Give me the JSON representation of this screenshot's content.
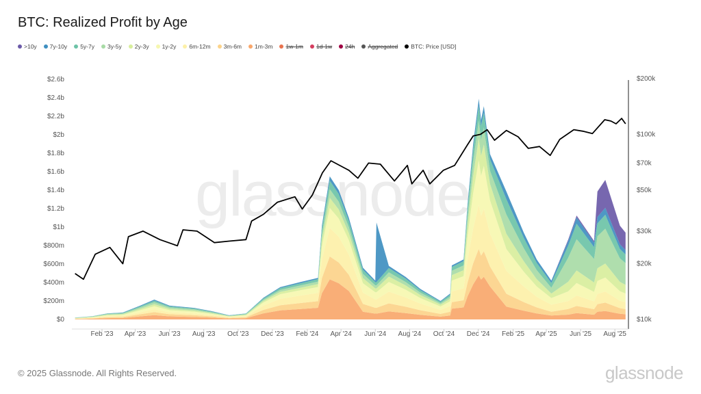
{
  "title": "BTC: Realized Profit by Age",
  "watermark": "glassnode",
  "footer": {
    "copyright": "© 2025 Glassnode. All Rights Reserved.",
    "logo": "glassnode"
  },
  "legend": [
    {
      "label": ">10y",
      "color": "#6b5aa8",
      "enabled": true
    },
    {
      "label": "7y-10y",
      "color": "#3f8fc0",
      "enabled": true
    },
    {
      "label": "5y-7y",
      "color": "#6cc3a7",
      "enabled": true
    },
    {
      "label": "3y-5y",
      "color": "#a8dba6",
      "enabled": true
    },
    {
      "label": "2y-3y",
      "color": "#d8ee9c",
      "enabled": true
    },
    {
      "label": "1y-2y",
      "color": "#f6f7b0",
      "enabled": true
    },
    {
      "label": "6m-12m",
      "color": "#fdf0a8",
      "enabled": true
    },
    {
      "label": "3m-6m",
      "color": "#fcd38a",
      "enabled": true
    },
    {
      "label": "1m-3m",
      "color": "#f9a76b",
      "enabled": true
    },
    {
      "label": "1w-1m",
      "color": "#e8734f",
      "enabled": false
    },
    {
      "label": "1d-1w",
      "color": "#d53e5f",
      "enabled": false
    },
    {
      "label": "24h",
      "color": "#9e0142",
      "enabled": false
    },
    {
      "label": "Aggregated",
      "color": "#555555",
      "enabled": false
    },
    {
      "label": "BTC: Price [USD]",
      "color": "#000000",
      "enabled": true
    }
  ],
  "chart_data": {
    "type": "area",
    "stacked": true,
    "title": "BTC: Realized Profit by Age",
    "y_left": {
      "unit": "USD millions",
      "range": [
        0,
        2600
      ],
      "ticks": [
        "$0",
        "$200m",
        "$400m",
        "$600m",
        "$800m",
        "$1b",
        "$1.2b",
        "$1.4b",
        "$1.6b",
        "$1.8b",
        "$2b",
        "$2.2b",
        "$2.4b",
        "$2.6b"
      ]
    },
    "y_right": {
      "scale": "log",
      "range": [
        10000,
        200000
      ],
      "ticks": [
        {
          "v": 10000,
          "label": "$10k"
        },
        {
          "v": 20000,
          "label": "$20k"
        },
        {
          "v": 30000,
          "label": "$30k"
        },
        {
          "v": 50000,
          "label": "$50k"
        },
        {
          "v": 70000,
          "label": "$70k"
        },
        {
          "v": 100000,
          "label": "$100k"
        },
        {
          "v": 200000,
          "label": "$200k"
        }
      ]
    },
    "x_ticks": [
      {
        "date": "2023-02-01",
        "label": "Feb '23"
      },
      {
        "date": "2023-04-01",
        "label": "Apr '23"
      },
      {
        "date": "2023-06-01",
        "label": "Jun '23"
      },
      {
        "date": "2023-08-01",
        "label": "Aug '23"
      },
      {
        "date": "2023-10-01",
        "label": "Oct '23"
      },
      {
        "date": "2023-12-01",
        "label": "Dec '23"
      },
      {
        "date": "2024-02-01",
        "label": "Feb '24"
      },
      {
        "date": "2024-04-01",
        "label": "Apr '24"
      },
      {
        "date": "2024-06-01",
        "label": "Jun '24"
      },
      {
        "date": "2024-08-01",
        "label": "Aug '24"
      },
      {
        "date": "2024-10-01",
        "label": "Oct '24"
      },
      {
        "date": "2024-12-01",
        "label": "Dec '24"
      },
      {
        "date": "2025-02-01",
        "label": "Feb '25"
      },
      {
        "date": "2025-04-01",
        "label": "Apr '25"
      },
      {
        "date": "2025-06-01",
        "label": "Jun '25"
      },
      {
        "date": "2025-08-01",
        "label": "Aug '25"
      }
    ],
    "grid": false,
    "legend_position": "top-left",
    "x": [
      "2022-12-15",
      "2023-01-15",
      "2023-02-10",
      "2023-03-10",
      "2023-04-10",
      "2023-05-05",
      "2023-06-01",
      "2023-07-15",
      "2023-08-15",
      "2023-09-15",
      "2023-10-15",
      "2023-11-15",
      "2023-12-15",
      "2024-01-20",
      "2024-02-20",
      "2024-02-27",
      "2024-03-12",
      "2024-03-28",
      "2024-04-15",
      "2024-05-10",
      "2024-06-01",
      "2024-06-03",
      "2024-06-25",
      "2024-07-25",
      "2024-08-20",
      "2024-09-25",
      "2024-10-12",
      "2024-10-15",
      "2024-11-05",
      "2024-11-12",
      "2024-11-22",
      "2024-12-02",
      "2024-12-06",
      "2024-12-11",
      "2024-12-22",
      "2025-01-20",
      "2025-02-20",
      "2025-03-15",
      "2025-04-10",
      "2025-05-10",
      "2025-05-25",
      "2025-06-25",
      "2025-07-01",
      "2025-07-15",
      "2025-08-10",
      "2025-08-20"
    ],
    "series": [
      {
        "name": "1m-3m",
        "values": [
          4,
          8,
          14,
          16,
          33,
          47,
          33,
          27,
          20,
          10,
          14,
          66,
          98,
          113,
          126,
          284,
          434,
          392,
          308,
          84,
          63,
          63,
          87,
          69,
          50,
          30,
          42,
          117,
          130,
          250,
          380,
          478,
          432,
          462,
          358,
          139,
          94,
          65,
          42,
          52,
          68,
          51,
          83,
          91,
          61,
          56
        ]
      },
      {
        "name": "3m-6m",
        "values": [
          3,
          5,
          10,
          11,
          23,
          32,
          23,
          19,
          13,
          7,
          10,
          38,
          56,
          65,
          72,
          162,
          248,
          224,
          176,
          84,
          63,
          63,
          87,
          69,
          50,
          30,
          42,
          70,
          78,
          150,
          228,
          287,
          259,
          277,
          215,
          139,
          94,
          65,
          42,
          61,
          79,
          60,
          83,
          91,
          61,
          56
        ]
      },
      {
        "name": "6m-12m",
        "values": [
          3,
          5,
          10,
          11,
          22,
          32,
          22,
          19,
          14,
          7,
          10,
          47,
          70,
          81,
          90,
          203,
          310,
          280,
          220,
          123,
          92,
          92,
          128,
          101,
          73,
          44,
          62,
          117,
          130,
          250,
          380,
          478,
          432,
          462,
          358,
          249,
          169,
          117,
          76,
          87,
          113,
          85,
          111,
          121,
          81,
          75
        ]
      },
      {
        "name": "1y-2y",
        "values": [
          3,
          5,
          10,
          11,
          22,
          32,
          22,
          19,
          13,
          7,
          10,
          33,
          49,
          57,
          63,
          142,
          217,
          196,
          154,
          101,
          76,
          76,
          104,
          83,
          59,
          36,
          50,
          117,
          130,
          250,
          380,
          478,
          432,
          462,
          358,
          235,
          160,
          111,
          71,
          104,
          135,
          102,
          139,
          151,
          102,
          94
        ]
      },
      {
        "name": "2y-3y",
        "values": [
          2,
          4,
          7,
          8,
          15,
          22,
          15,
          12,
          9,
          4,
          7,
          16,
          25,
          28,
          32,
          71,
          109,
          98,
          77,
          56,
          42,
          42,
          58,
          46,
          33,
          20,
          28,
          59,
          65,
          125,
          190,
          239,
          216,
          231,
          179,
          166,
          113,
          78,
          50,
          104,
          135,
          102,
          139,
          151,
          102,
          94
        ]
      },
      {
        "name": "3y-5y",
        "values": [
          2,
          4,
          7,
          8,
          15,
          22,
          15,
          13,
          9,
          5,
          7,
          14,
          21,
          24,
          27,
          61,
          93,
          84,
          66,
          45,
          34,
          34,
          46,
          37,
          26,
          16,
          22,
          47,
          52,
          100,
          152,
          191,
          173,
          185,
          143,
          208,
          141,
          98,
          63,
          260,
          338,
          255,
          346,
          378,
          254,
          235
        ]
      },
      {
        "name": "5y-7y",
        "values": [
          2,
          3,
          5,
          6,
          12,
          17,
          12,
          10,
          7,
          3,
          5,
          14,
          21,
          24,
          27,
          61,
          93,
          84,
          66,
          45,
          34,
          34,
          46,
          37,
          26,
          16,
          22,
          41,
          46,
          88,
          133,
          167,
          151,
          162,
          125,
          166,
          113,
          78,
          50,
          130,
          169,
          128,
          139,
          151,
          102,
          94
        ]
      },
      {
        "name": "7y-10y",
        "values": [
          1,
          1,
          2,
          4,
          8,
          11,
          8,
          6,
          5,
          2,
          2,
          7,
          10,
          13,
          13,
          31,
          46,
          42,
          33,
          22,
          16,
          646,
          24,
          18,
          13,
          8,
          12,
          17,
          19,
          37,
          57,
          72,
          65,
          69,
          54,
          83,
          56,
          38,
          26,
          52,
          68,
          51,
          69,
          75,
          51,
          47
        ]
      },
      {
        "name": ">10y",
        "values": [
          0,
          0,
          0,
          0,
          0,
          0,
          0,
          0,
          0,
          0,
          0,
          0,
          0,
          0,
          0,
          0,
          0,
          0,
          0,
          0,
          0,
          0,
          0,
          0,
          0,
          0,
          0,
          0,
          0,
          0,
          0,
          0,
          0,
          0,
          0,
          0,
          0,
          0,
          0,
          15,
          20,
          16,
          276,
          302,
          201,
          189
        ]
      }
    ],
    "price": {
      "name": "BTC: Price [USD]",
      "x": [
        "2022-12-15",
        "2022-12-30",
        "2023-01-20",
        "2023-02-15",
        "2023-03-10",
        "2023-03-20",
        "2023-04-15",
        "2023-05-15",
        "2023-06-15",
        "2023-06-25",
        "2023-07-20",
        "2023-08-20",
        "2023-09-15",
        "2023-10-15",
        "2023-10-25",
        "2023-11-15",
        "2023-12-10",
        "2024-01-10",
        "2024-01-23",
        "2024-02-10",
        "2024-02-28",
        "2024-03-14",
        "2024-04-15",
        "2024-05-01",
        "2024-05-20",
        "2024-06-10",
        "2024-07-05",
        "2024-07-28",
        "2024-08-05",
        "2024-08-25",
        "2024-09-06",
        "2024-09-30",
        "2024-10-20",
        "2024-11-12",
        "2024-11-22",
        "2024-12-05",
        "2024-12-17",
        "2024-12-30",
        "2025-01-20",
        "2025-02-10",
        "2025-02-28",
        "2025-03-20",
        "2025-04-08",
        "2025-04-25",
        "2025-05-20",
        "2025-06-05",
        "2025-06-22",
        "2025-07-14",
        "2025-07-25",
        "2025-08-03",
        "2025-08-13",
        "2025-08-20"
      ],
      "values": [
        17700,
        16500,
        22500,
        24500,
        20000,
        28000,
        30000,
        27000,
        25000,
        30500,
        30000,
        26000,
        26500,
        27000,
        34000,
        37000,
        43000,
        46000,
        39500,
        47000,
        62000,
        72000,
        64000,
        58000,
        70000,
        69000,
        56000,
        68000,
        54000,
        64000,
        54000,
        64000,
        68000,
        88000,
        98000,
        100000,
        106000,
        93000,
        105000,
        97000,
        84000,
        86000,
        77000,
        94000,
        106000,
        104000,
        101000,
        120000,
        118000,
        114000,
        122000,
        114000
      ]
    }
  }
}
